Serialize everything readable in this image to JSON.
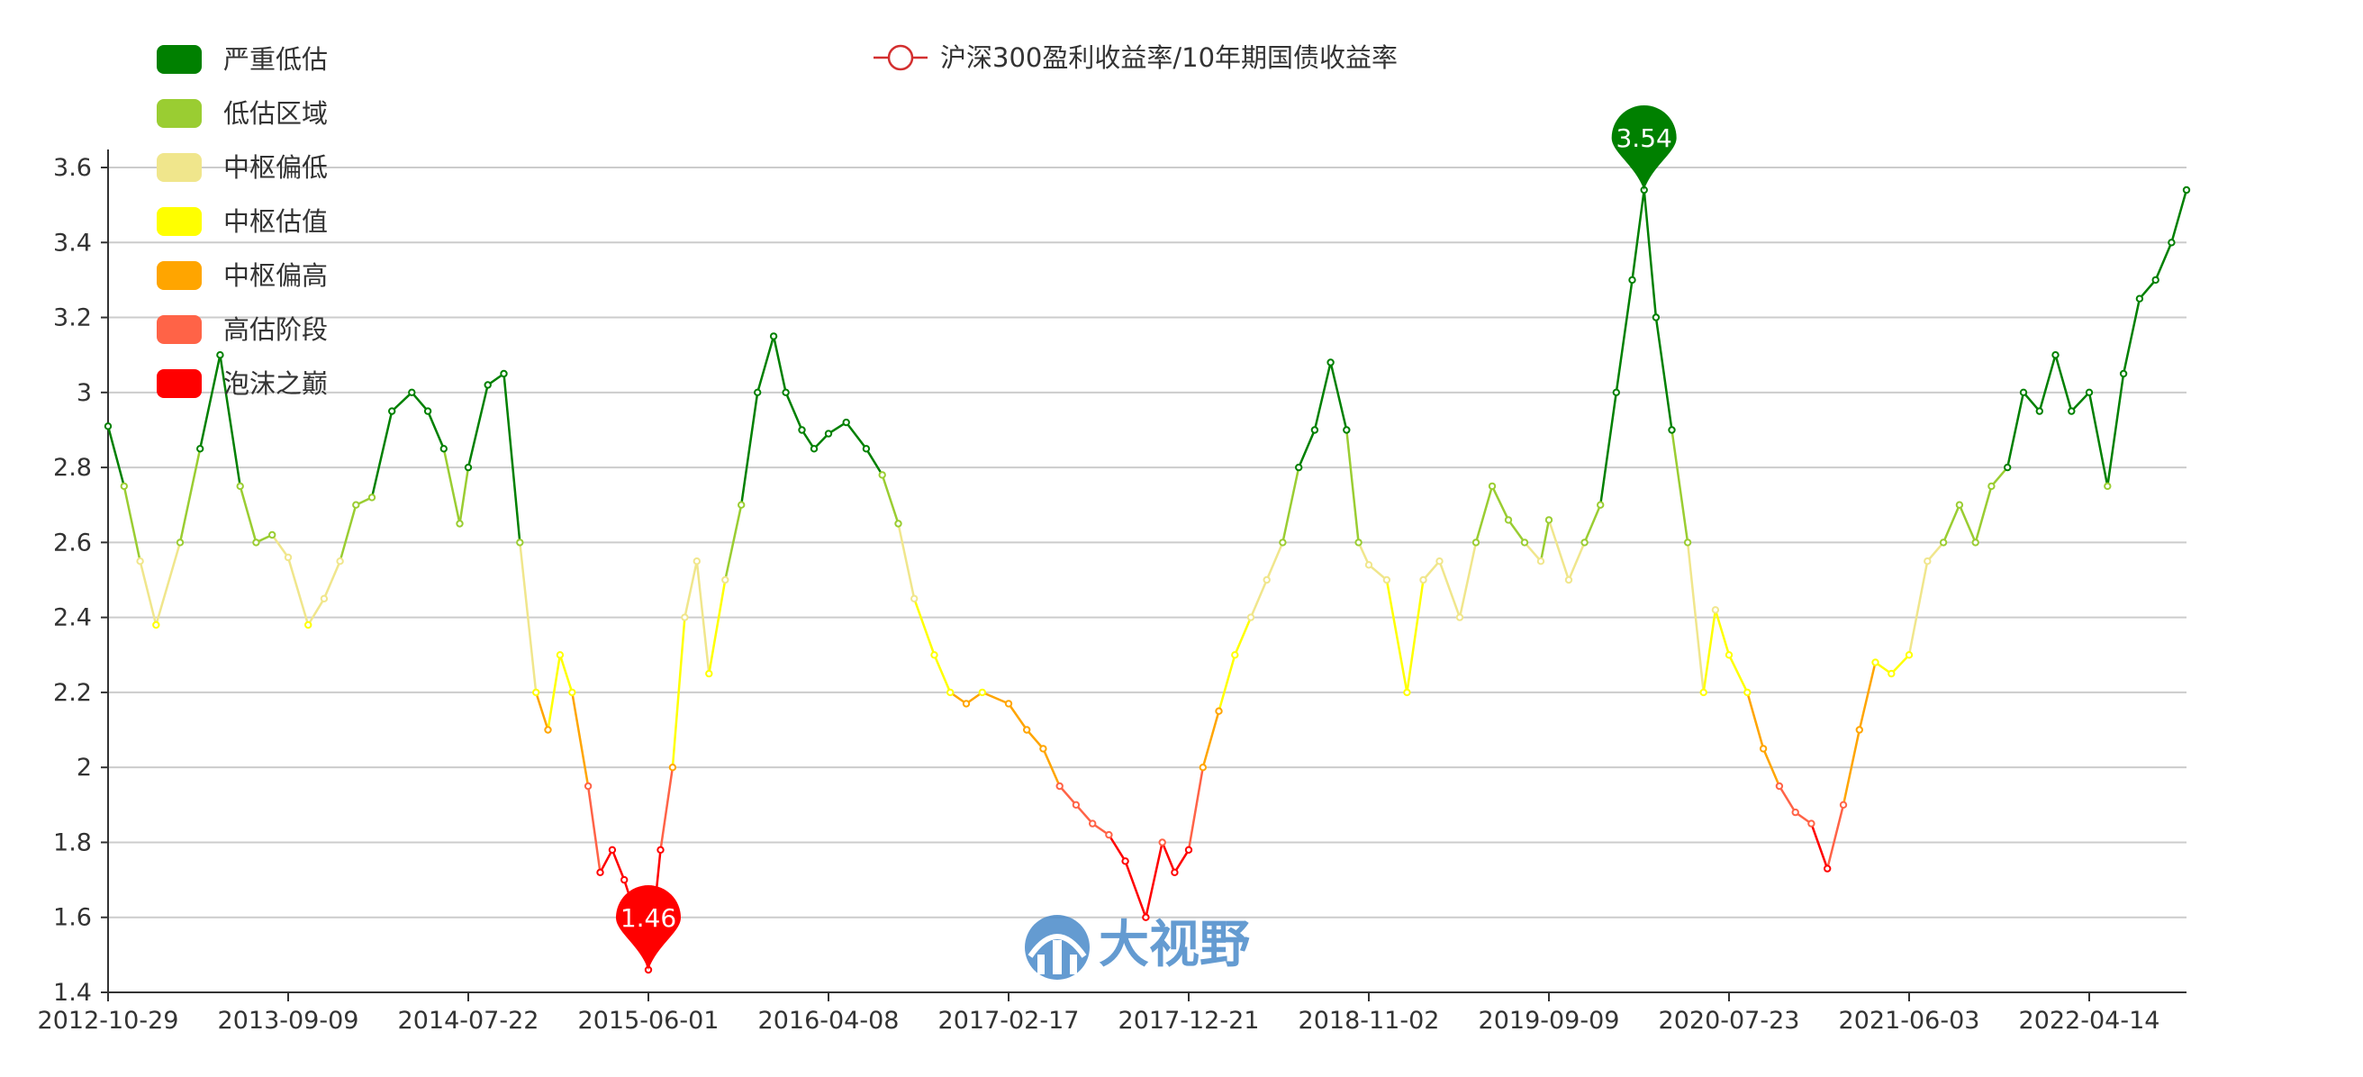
{
  "chart_data": {
    "type": "line",
    "series": [
      {
        "name": "沪深300盈利收益率/10年期国债收益率",
        "color": "#d32f2f",
        "x": [
          "2012-10-29",
          "2012-11-26",
          "2012-12-24",
          "2013-01-21",
          "2013-03-04",
          "2013-04-08",
          "2013-05-13",
          "2013-06-17",
          "2013-07-15",
          "2013-08-12",
          "2013-09-09",
          "2013-10-14",
          "2013-11-11",
          "2013-12-09",
          "2014-01-06",
          "2014-02-03",
          "2014-03-10",
          "2014-04-14",
          "2014-05-12",
          "2014-06-09",
          "2014-07-07",
          "2014-07-22",
          "2014-08-25",
          "2014-09-22",
          "2014-10-20",
          "2014-11-17",
          "2014-12-08",
          "2014-12-29",
          "2015-01-19",
          "2015-02-16",
          "2015-03-09",
          "2015-03-30",
          "2015-04-20",
          "2015-05-11",
          "2015-06-01",
          "2015-06-22",
          "2015-07-13",
          "2015-08-03",
          "2015-08-24",
          "2015-09-14",
          "2015-10-12",
          "2015-11-09",
          "2015-12-07",
          "2016-01-04",
          "2016-01-25",
          "2016-02-22",
          "2016-03-14",
          "2016-04-08",
          "2016-05-09",
          "2016-06-13",
          "2016-07-11",
          "2016-08-08",
          "2016-09-05",
          "2016-10-10",
          "2016-11-07",
          "2016-12-05",
          "2017-01-02",
          "2017-02-17",
          "2017-03-20",
          "2017-04-17",
          "2017-05-15",
          "2017-06-12",
          "2017-07-10",
          "2017-08-07",
          "2017-09-04",
          "2017-10-09",
          "2017-11-06",
          "2017-11-27",
          "2017-12-21",
          "2018-01-15",
          "2018-02-12",
          "2018-03-12",
          "2018-04-09",
          "2018-05-07",
          "2018-06-04",
          "2018-07-02",
          "2018-07-30",
          "2018-08-27",
          "2018-09-24",
          "2018-10-15",
          "2018-11-02",
          "2018-12-03",
          "2019-01-07",
          "2019-02-04",
          "2019-03-04",
          "2019-04-08",
          "2019-05-06",
          "2019-06-03",
          "2019-07-01",
          "2019-07-29",
          "2019-08-26",
          "2019-09-09",
          "2019-10-14",
          "2019-11-11",
          "2019-12-09",
          "2020-01-06",
          "2020-02-03",
          "2020-02-24",
          "2020-03-16",
          "2020-04-13",
          "2020-05-11",
          "2020-06-08",
          "2020-06-29",
          "2020-07-23",
          "2020-08-24",
          "2020-09-21",
          "2020-10-19",
          "2020-11-16",
          "2020-12-14",
          "2021-01-11",
          "2021-02-08",
          "2021-03-08",
          "2021-04-05",
          "2021-05-03",
          "2021-06-03",
          "2021-07-05",
          "2021-08-02",
          "2021-08-30",
          "2021-09-27",
          "2021-10-25",
          "2021-11-22",
          "2021-12-20",
          "2022-01-17",
          "2022-02-14",
          "2022-03-14",
          "2022-04-14",
          "2022-05-16",
          "2022-06-13",
          "2022-07-11",
          "2022-08-08",
          "2022-09-05",
          "2022-10-03"
        ],
        "values": [
          2.91,
          2.75,
          2.55,
          2.38,
          2.6,
          2.85,
          3.1,
          2.75,
          2.6,
          2.62,
          2.56,
          2.38,
          2.45,
          2.55,
          2.7,
          2.72,
          2.95,
          3.0,
          2.95,
          2.85,
          2.65,
          2.8,
          3.02,
          3.05,
          2.6,
          2.2,
          2.1,
          2.3,
          2.2,
          1.95,
          1.72,
          1.78,
          1.7,
          1.6,
          1.46,
          1.78,
          2.0,
          2.4,
          2.55,
          2.25,
          2.5,
          2.7,
          3.0,
          3.15,
          3.0,
          2.9,
          2.85,
          2.89,
          2.92,
          2.85,
          2.78,
          2.65,
          2.45,
          2.3,
          2.2,
          2.17,
          2.2,
          2.17,
          2.1,
          2.05,
          1.95,
          1.9,
          1.85,
          1.82,
          1.75,
          1.6,
          1.8,
          1.72,
          1.78,
          2.0,
          2.15,
          2.3,
          2.4,
          2.5,
          2.6,
          2.8,
          2.9,
          3.08,
          2.9,
          2.6,
          2.54,
          2.5,
          2.2,
          2.5,
          2.55,
          2.4,
          2.6,
          2.75,
          2.66,
          2.6,
          2.55,
          2.66,
          2.5,
          2.6,
          2.7,
          3.0,
          3.3,
          3.54,
          3.2,
          2.9,
          2.6,
          2.2,
          2.42,
          2.3,
          2.2,
          2.05,
          1.95,
          1.88,
          1.85,
          1.73,
          1.9,
          2.1,
          2.28,
          2.25,
          2.3,
          2.55,
          2.6,
          2.7,
          2.6,
          2.75,
          2.8,
          3.0,
          2.95,
          3.1,
          2.95,
          3.0,
          2.75,
          3.05,
          3.25,
          3.3,
          3.4,
          3.54
        ]
      }
    ],
    "ylim": [
      1.4,
      3.6
    ],
    "yticks": [
      "1.4",
      "1.6",
      "1.8",
      "2",
      "2.2",
      "2.4",
      "2.6",
      "2.8",
      "3",
      "3.2",
      "3.4",
      "3.6"
    ],
    "xtick_labels": [
      "2012-10-29",
      "2013-09-09",
      "2014-07-22",
      "2015-06-01",
      "2016-04-08",
      "2017-02-17",
      "2017-12-21",
      "2018-11-02",
      "2019-09-09",
      "2020-07-23",
      "2021-06-03",
      "2022-04-14"
    ],
    "grid": true,
    "legend_position": "top-left",
    "visual_map": [
      {
        "label": "严重低估",
        "min": 2.8,
        "max": 99,
        "color": "#008000"
      },
      {
        "label": "低估区域",
        "min": 2.6,
        "max": 2.8,
        "color": "#9acd32"
      },
      {
        "label": "中枢偏低",
        "min": 2.4,
        "max": 2.6,
        "color": "#f0e68c"
      },
      {
        "label": "中枢估值",
        "min": 2.2,
        "max": 2.4,
        "color": "#ffff00"
      },
      {
        "label": "中枢偏高",
        "min": 2.0,
        "max": 2.2,
        "color": "#ffa500"
      },
      {
        "label": "高估阶段",
        "min": 1.8,
        "max": 2.0,
        "color": "#ff6347"
      },
      {
        "label": "泡沫之巅",
        "min": 0,
        "max": 1.8,
        "color": "#ff0000"
      }
    ],
    "mark_points": [
      {
        "label": "3.54",
        "x": "2020-02-24",
        "value": 3.54,
        "color": "#008000"
      },
      {
        "label": "1.46",
        "x": "2015-06-01",
        "value": 1.46,
        "color": "#ff0000"
      }
    ],
    "watermark": "大视野"
  }
}
